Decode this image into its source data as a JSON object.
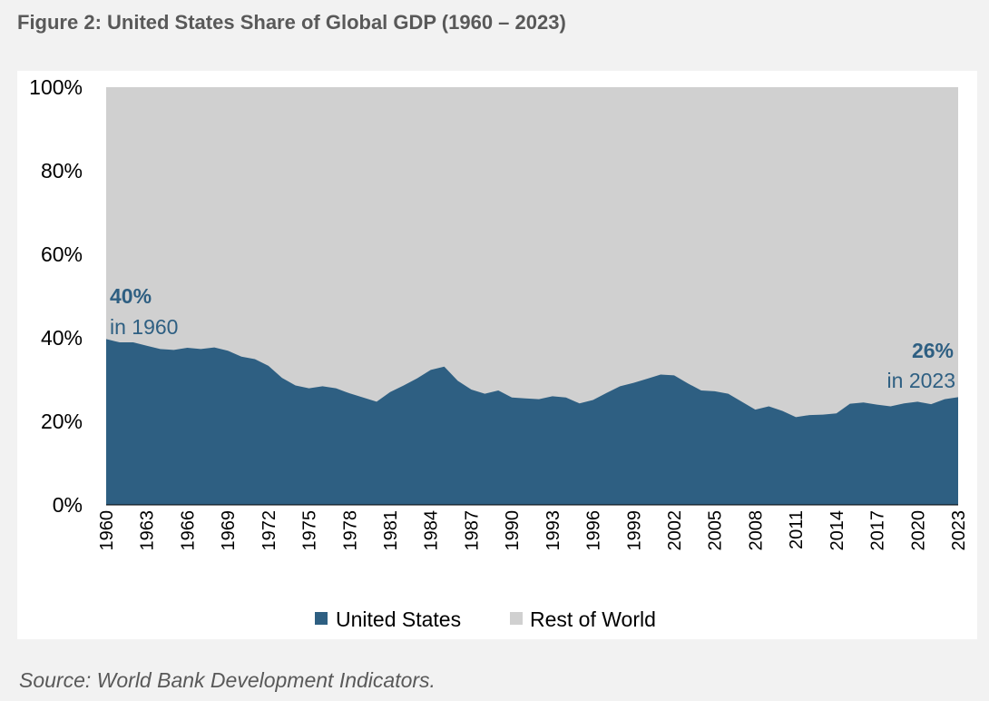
{
  "figure": {
    "title": "Figure 2: United States Share of Global GDP (1960 – 2023)",
    "source": "Source: World Bank Development Indicators."
  },
  "chart_data": {
    "type": "area",
    "stacked": true,
    "title": "",
    "xlabel": "",
    "ylabel": "",
    "ylim": [
      0,
      100
    ],
    "y_ticks": [
      "0%",
      "20%",
      "40%",
      "60%",
      "80%",
      "100%"
    ],
    "x_tick_labels": [
      "1960",
      "1963",
      "1966",
      "1969",
      "1972",
      "1975",
      "1978",
      "1981",
      "1984",
      "1987",
      "1990",
      "1993",
      "1996",
      "1999",
      "2002",
      "2005",
      "2008",
      "2011",
      "2014",
      "2017",
      "2020",
      "2023"
    ],
    "x": [
      1960,
      1961,
      1962,
      1963,
      1964,
      1965,
      1966,
      1967,
      1968,
      1969,
      1970,
      1971,
      1972,
      1973,
      1974,
      1975,
      1976,
      1977,
      1978,
      1979,
      1980,
      1981,
      1982,
      1983,
      1984,
      1985,
      1986,
      1987,
      1988,
      1989,
      1990,
      1991,
      1992,
      1993,
      1994,
      1995,
      1996,
      1997,
      1998,
      1999,
      2000,
      2001,
      2002,
      2003,
      2004,
      2005,
      2006,
      2007,
      2008,
      2009,
      2010,
      2011,
      2012,
      2013,
      2014,
      2015,
      2016,
      2017,
      2018,
      2019,
      2020,
      2021,
      2022,
      2023
    ],
    "series": [
      {
        "name": "United States",
        "color": "#2e5f82",
        "values": [
          39.7,
          38.9,
          38.9,
          38.1,
          37.3,
          37.1,
          37.6,
          37.3,
          37.7,
          36.9,
          35.5,
          34.9,
          33.3,
          30.4,
          28.6,
          27.9,
          28.4,
          27.9,
          26.7,
          25.7,
          24.7,
          27.0,
          28.6,
          30.3,
          32.3,
          33.1,
          29.7,
          27.6,
          26.6,
          27.4,
          25.7,
          25.5,
          25.3,
          26.0,
          25.7,
          24.3,
          25.1,
          26.8,
          28.4,
          29.2,
          30.2,
          31.2,
          31.0,
          29.1,
          27.4,
          27.2,
          26.6,
          24.7,
          22.8,
          23.6,
          22.5,
          21.0,
          21.5,
          21.6,
          21.9,
          24.2,
          24.5,
          24.0,
          23.6,
          24.3,
          24.7,
          24.1,
          25.3,
          25.8
        ]
      },
      {
        "name": "Rest of World",
        "color": "#d0d0d0",
        "fills_to": 100
      }
    ],
    "legend_position": "bottom",
    "grid": false,
    "annotations": [
      {
        "value_label": "40%",
        "label": "in 1960",
        "color": "#2e5f82"
      },
      {
        "value_label": "26%",
        "label": "in 2023",
        "color": "#2e5f82"
      }
    ]
  }
}
